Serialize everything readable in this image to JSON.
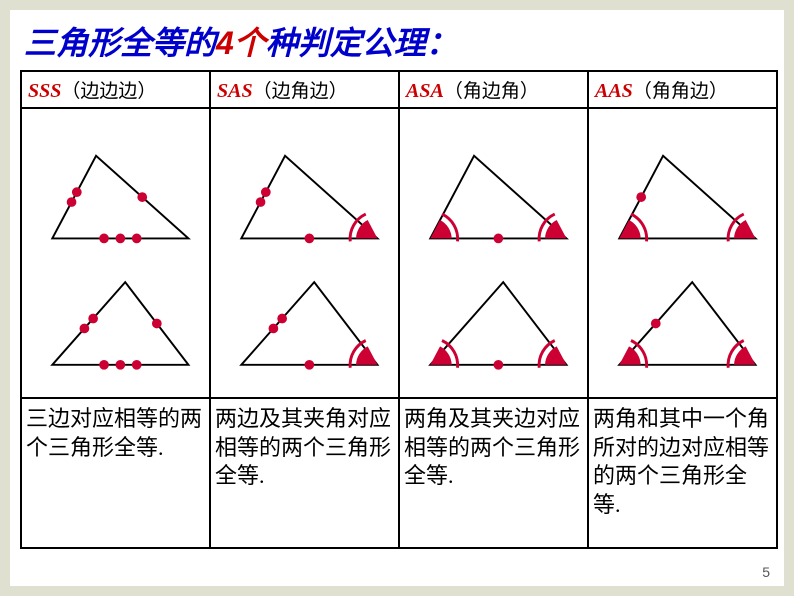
{
  "title": {
    "pre": "三角形全等的",
    "num": "4",
    "mid": "个",
    "post": "种判定公理："
  },
  "columns": [
    {
      "abbr": "SSS",
      "cn": "（边边边）",
      "desc": " 三边对应相等的两个三角形全等.",
      "diagram": {
        "marks": {
          "side1": 2,
          "side2": 1,
          "side3": 3
        },
        "angles": []
      }
    },
    {
      "abbr": "SAS",
      "cn": "（边角边）",
      "desc": " 两边及其夹角对应相等的两个三角形全等.",
      "diagram": {
        "marks": {
          "side1": 2,
          "side2": 0,
          "side3": 1
        },
        "angles": [
          "BR"
        ]
      }
    },
    {
      "abbr": "ASA",
      "cn": "（角边角）",
      "desc": " 两角及其夹边对应相等的两个三角形全等.",
      "diagram": {
        "marks": {
          "side1": 0,
          "side2": 0,
          "side3": 1
        },
        "angles": [
          "BL",
          "BR"
        ]
      }
    },
    {
      "abbr": "AAS",
      "cn": "（角角边）",
      "desc": " 两角和其中一个角所对的边对应相等的两个三角形全等.",
      "diagram": {
        "marks": {
          "side1": 1,
          "side2": 0,
          "side3": 0
        },
        "angles": [
          "BL",
          "BR"
        ]
      }
    }
  ],
  "style": {
    "stroke": "#000000",
    "stroke_width": 2,
    "mark_fill": "#cc0033",
    "mark_radius": 5,
    "angle_fill": "#cc0033"
  },
  "pagenum": "5"
}
